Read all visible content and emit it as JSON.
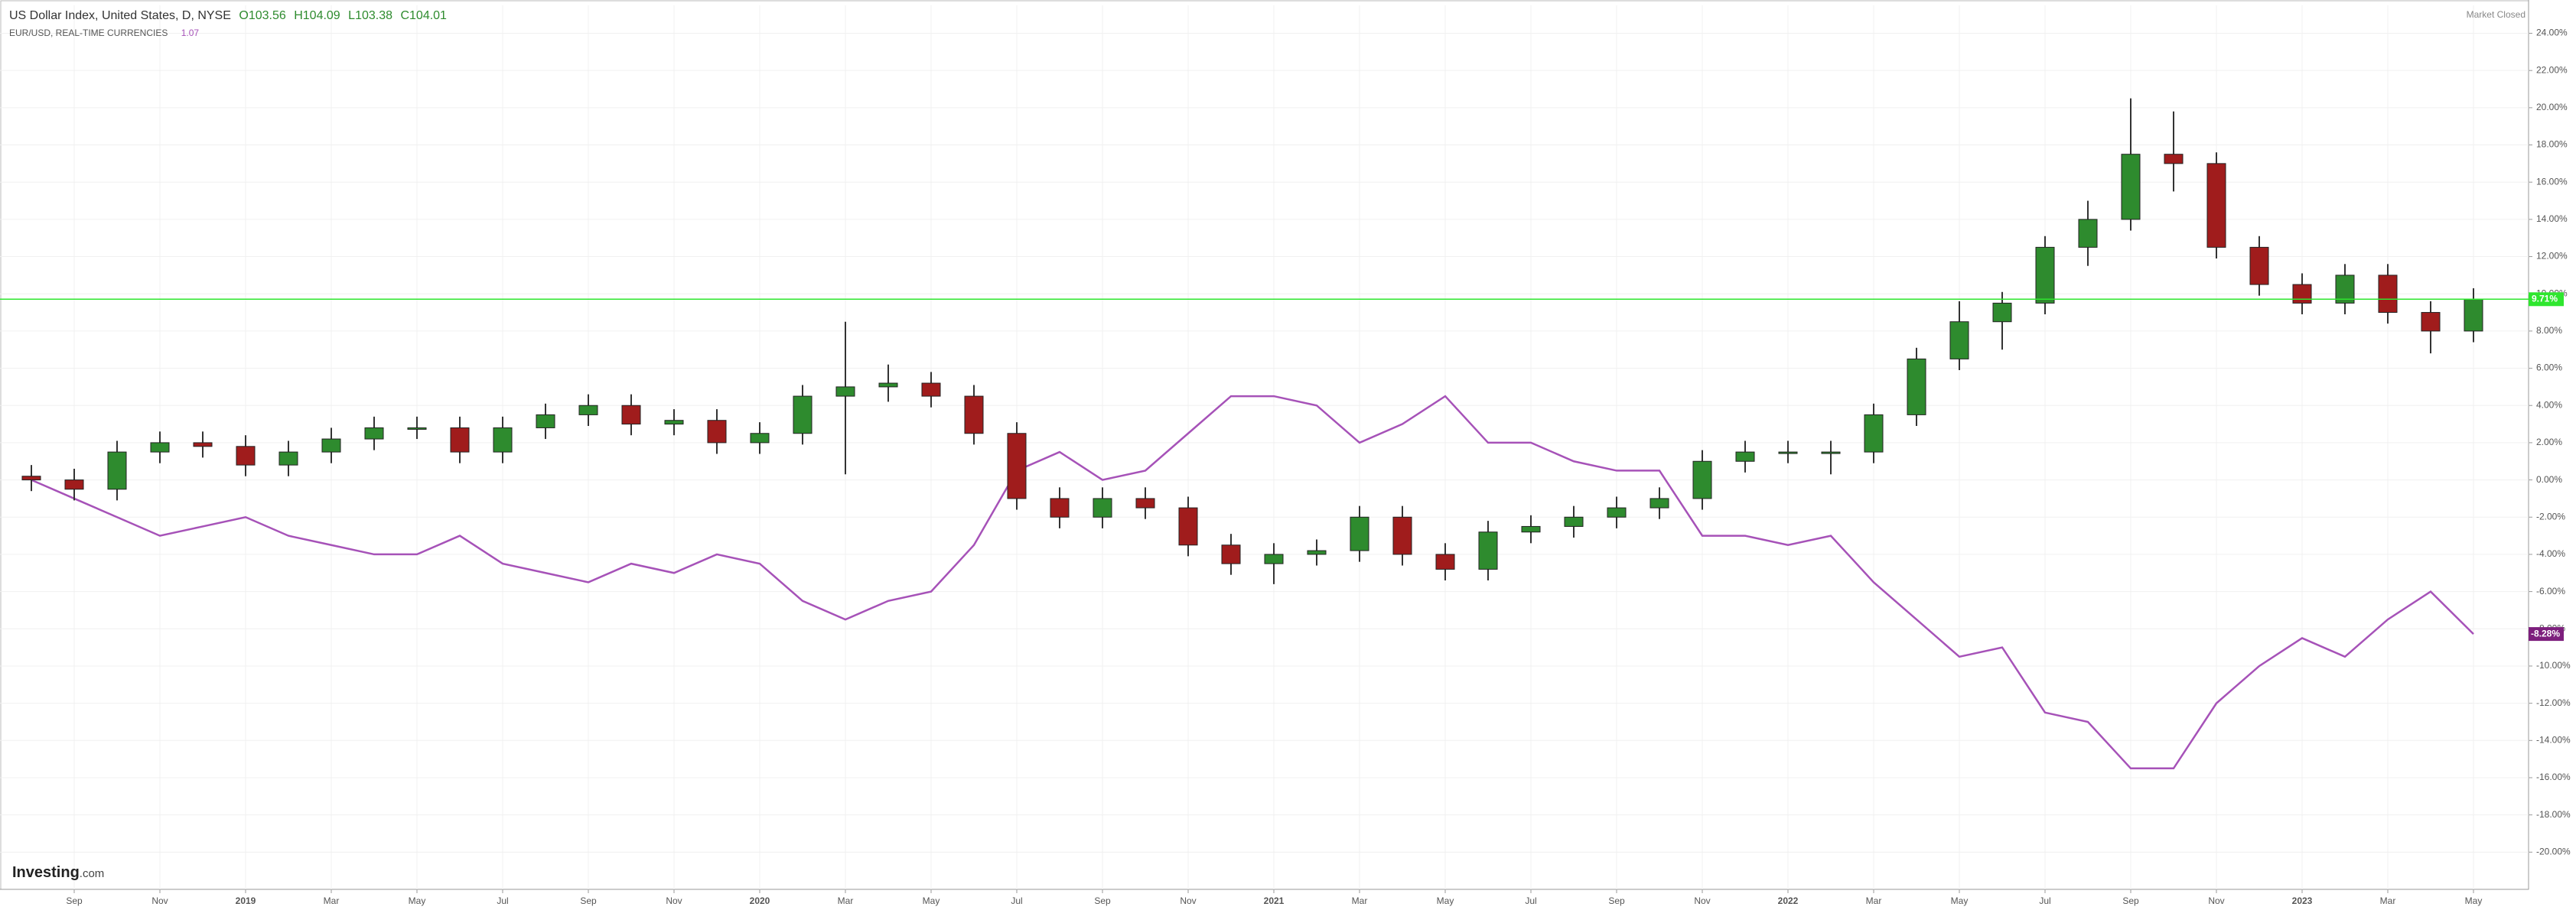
{
  "chart_data": {
    "type": "candlestick",
    "title": "US Dollar Index, United States, D, NYSE",
    "ohlc": [
      {
        "label": "O",
        "value": 103.56
      },
      {
        "label": "H",
        "value": 104.09
      },
      {
        "label": "L",
        "value": 103.38
      },
      {
        "label": "C",
        "value": 104.01
      }
    ],
    "status": "Market Closed",
    "brand": "Investing",
    "brand_suffix": ".com",
    "x": [
      "2018-08",
      "2018-09",
      "2018-10",
      "2018-11",
      "2018-12",
      "2019-01",
      "2019-02",
      "2019-03",
      "2019-04",
      "2019-05",
      "2019-06",
      "2019-07",
      "2019-08",
      "2019-09",
      "2019-10",
      "2019-11",
      "2019-12",
      "2020-01",
      "2020-02",
      "2020-03",
      "2020-04",
      "2020-05",
      "2020-06",
      "2020-07",
      "2020-08",
      "2020-09",
      "2020-10",
      "2020-11",
      "2020-12",
      "2021-01",
      "2021-02",
      "2021-03",
      "2021-04",
      "2021-05",
      "2021-06",
      "2021-07",
      "2021-08",
      "2021-09",
      "2021-10",
      "2021-11",
      "2021-12",
      "2022-01",
      "2022-02",
      "2022-03",
      "2022-04",
      "2022-05",
      "2022-06",
      "2022-07",
      "2022-08",
      "2022-09",
      "2022-10",
      "2022-11",
      "2022-12",
      "2023-01",
      "2023-02",
      "2023-03",
      "2023-04",
      "2023-05"
    ],
    "series": [
      {
        "name": "US Dollar Index, United States, D, NYSE",
        "type": "candlestick",
        "color_up": "#2e8b2e",
        "color_down": "#a01c1c",
        "last_color": "#2ee62e",
        "last_label": "9.71%",
        "open": [
          0.2,
          0,
          -0.5,
          1.5,
          2.0,
          1.8,
          0.8,
          1.5,
          2.2,
          2.8,
          2.8,
          1.5,
          2.8,
          3.5,
          4.0,
          3.0,
          3.2,
          2.0,
          2.5,
          4.5,
          5.0,
          5.2,
          4.5,
          2.5,
          -1.0,
          -2.0,
          -1.0,
          -1.5,
          -3.5,
          -4.5,
          -4.0,
          -3.8,
          -2.0,
          -4.0,
          -4.8,
          -2.8,
          -2.5,
          -2.0,
          -1.5,
          -1.0,
          1.0,
          1.5,
          1.5,
          1.5,
          3.5,
          6.5,
          8.5,
          9.5,
          12.5,
          14.0,
          17.5,
          17.0,
          12.5,
          10.5,
          9.5,
          11.0,
          9.0,
          8.0
        ],
        "high": [
          0.8,
          0.6,
          2.1,
          2.6,
          2.6,
          2.4,
          2.1,
          2.8,
          3.4,
          3.4,
          3.4,
          3.4,
          4.1,
          4.6,
          4.6,
          3.8,
          3.8,
          3.1,
          5.1,
          8.5,
          6.2,
          5.8,
          5.1,
          3.1,
          -0.4,
          -0.4,
          -0.4,
          -0.9,
          -2.9,
          -3.4,
          -3.2,
          -1.4,
          -1.4,
          -3.4,
          -2.2,
          -1.9,
          -1.4,
          -0.9,
          -0.4,
          1.6,
          2.1,
          2.1,
          2.1,
          4.1,
          7.1,
          9.6,
          10.1,
          13.1,
          15.0,
          20.5,
          19.8,
          17.6,
          13.1,
          11.1,
          11.6,
          11.6,
          9.6,
          10.3
        ],
        "low": [
          -0.6,
          -1.1,
          -1.1,
          0.9,
          1.2,
          0.2,
          0.2,
          0.9,
          1.6,
          2.2,
          0.9,
          0.9,
          2.2,
          2.9,
          2.4,
          2.4,
          1.4,
          1.4,
          1.9,
          0.3,
          4.2,
          3.9,
          1.9,
          -1.6,
          -2.6,
          -2.6,
          -2.1,
          -4.1,
          -5.1,
          -5.6,
          -4.6,
          -4.4,
          -4.6,
          -5.4,
          -5.4,
          -3.4,
          -3.1,
          -2.6,
          -2.1,
          -1.6,
          0.4,
          0.9,
          0.3,
          0.9,
          2.9,
          5.9,
          7.0,
          8.9,
          11.5,
          13.4,
          15.5,
          11.9,
          9.9,
          8.9,
          8.9,
          8.4,
          6.8,
          7.4
        ],
        "close": [
          0,
          -0.5,
          1.5,
          2.0,
          1.8,
          0.8,
          1.5,
          2.2,
          2.8,
          2.8,
          1.5,
          2.8,
          3.5,
          4.0,
          3.0,
          3.2,
          2.0,
          2.5,
          4.5,
          5.0,
          5.2,
          4.5,
          2.5,
          -1.0,
          -2.0,
          -1.0,
          -1.5,
          -3.5,
          -4.5,
          -4.0,
          -3.8,
          -2.0,
          -4.0,
          -4.8,
          -2.8,
          -2.5,
          -2.0,
          -1.5,
          -1.0,
          1.0,
          1.5,
          1.5,
          1.5,
          3.5,
          6.5,
          8.5,
          9.5,
          12.5,
          14.0,
          17.5,
          17.0,
          12.5,
          10.5,
          9.5,
          11.0,
          9.0,
          8.0,
          9.71
        ]
      },
      {
        "name": "EUR/USD, REAL-TIME CURRENCIES",
        "type": "line",
        "color": "#a652b8",
        "last_color": "#7d1f7d",
        "price": 1.07,
        "last_label": "-8.28%",
        "values": [
          0,
          -1,
          -2,
          -3,
          -2.5,
          -2,
          -3,
          -3.5,
          -4,
          -4,
          -3,
          -4.5,
          -5,
          -5.5,
          -4.5,
          -5,
          -4,
          -4.5,
          -6.5,
          -7.5,
          -6.5,
          -6,
          -3.5,
          0.5,
          1.5,
          0,
          0.5,
          2.5,
          4.5,
          4.5,
          4,
          2,
          3,
          4.5,
          2,
          2,
          1,
          0.5,
          0.5,
          -3,
          -3,
          -3.5,
          -3,
          -5.5,
          -7.5,
          -9.5,
          -9,
          -12.5,
          -13,
          -15.5,
          -15.5,
          -12,
          -10,
          -8.5,
          -9.5,
          -7.5,
          -6,
          -8.28
        ]
      }
    ],
    "ylim": [
      -22,
      25.5
    ],
    "yticks": [
      {
        "value": 24,
        "label": "24.00%"
      },
      {
        "value": 22,
        "label": "22.00%"
      },
      {
        "value": 20,
        "label": "20.00%"
      },
      {
        "value": 18,
        "label": "18.00%"
      },
      {
        "value": 16,
        "label": "16.00%"
      },
      {
        "value": 14,
        "label": "14.00%"
      },
      {
        "value": 12,
        "label": "12.00%"
      },
      {
        "value": 10,
        "label": "10.00%"
      },
      {
        "value": 8,
        "label": "8.00%"
      },
      {
        "value": 6,
        "label": "6.00%"
      },
      {
        "value": 4,
        "label": "4.00%"
      },
      {
        "value": 2,
        "label": "2.00%"
      },
      {
        "value": 0,
        "label": "0.00%"
      },
      {
        "value": -2,
        "label": "-2.00%"
      },
      {
        "value": -4,
        "label": "-4.00%"
      },
      {
        "value": -6,
        "label": "-6.00%"
      },
      {
        "value": -8,
        "label": "-8.00%"
      },
      {
        "value": -10,
        "label": "-10.00%"
      },
      {
        "value": -12,
        "label": "-12.00%"
      },
      {
        "value": -14,
        "label": "-14.00%"
      },
      {
        "value": -16,
        "label": "-16.00%"
      },
      {
        "value": -18,
        "label": "-18.00%"
      },
      {
        "value": -20,
        "label": "-20.00%"
      }
    ],
    "xticks": [
      {
        "value": "2018-09",
        "label": "Sep"
      },
      {
        "value": "2018-11",
        "label": "Nov"
      },
      {
        "value": "2019-01",
        "label": "2019"
      },
      {
        "value": "2019-03",
        "label": "Mar"
      },
      {
        "value": "2019-05",
        "label": "May"
      },
      {
        "value": "2019-07",
        "label": "Jul"
      },
      {
        "value": "2019-09",
        "label": "Sep"
      },
      {
        "value": "2019-11",
        "label": "Nov"
      },
      {
        "value": "2020-01",
        "label": "2020"
      },
      {
        "value": "2020-03",
        "label": "Mar"
      },
      {
        "value": "2020-05",
        "label": "May"
      },
      {
        "value": "2020-07",
        "label": "Jul"
      },
      {
        "value": "2020-09",
        "label": "Sep"
      },
      {
        "value": "2020-11",
        "label": "Nov"
      },
      {
        "value": "2021-01",
        "label": "2021"
      },
      {
        "value": "2021-03",
        "label": "Mar"
      },
      {
        "value": "2021-05",
        "label": "May"
      },
      {
        "value": "2021-07",
        "label": "Jul"
      },
      {
        "value": "2021-09",
        "label": "Sep"
      },
      {
        "value": "2021-11",
        "label": "Nov"
      },
      {
        "value": "2022-01",
        "label": "2022"
      },
      {
        "value": "2022-03",
        "label": "Mar"
      },
      {
        "value": "2022-05",
        "label": "May"
      },
      {
        "value": "2022-07",
        "label": "Jul"
      },
      {
        "value": "2022-09",
        "label": "Sep"
      },
      {
        "value": "2022-11",
        "label": "Nov"
      },
      {
        "value": "2023-01",
        "label": "2023"
      },
      {
        "value": "2023-03",
        "label": "Mar"
      },
      {
        "value": "2023-05",
        "label": "May"
      }
    ],
    "grid": true
  }
}
